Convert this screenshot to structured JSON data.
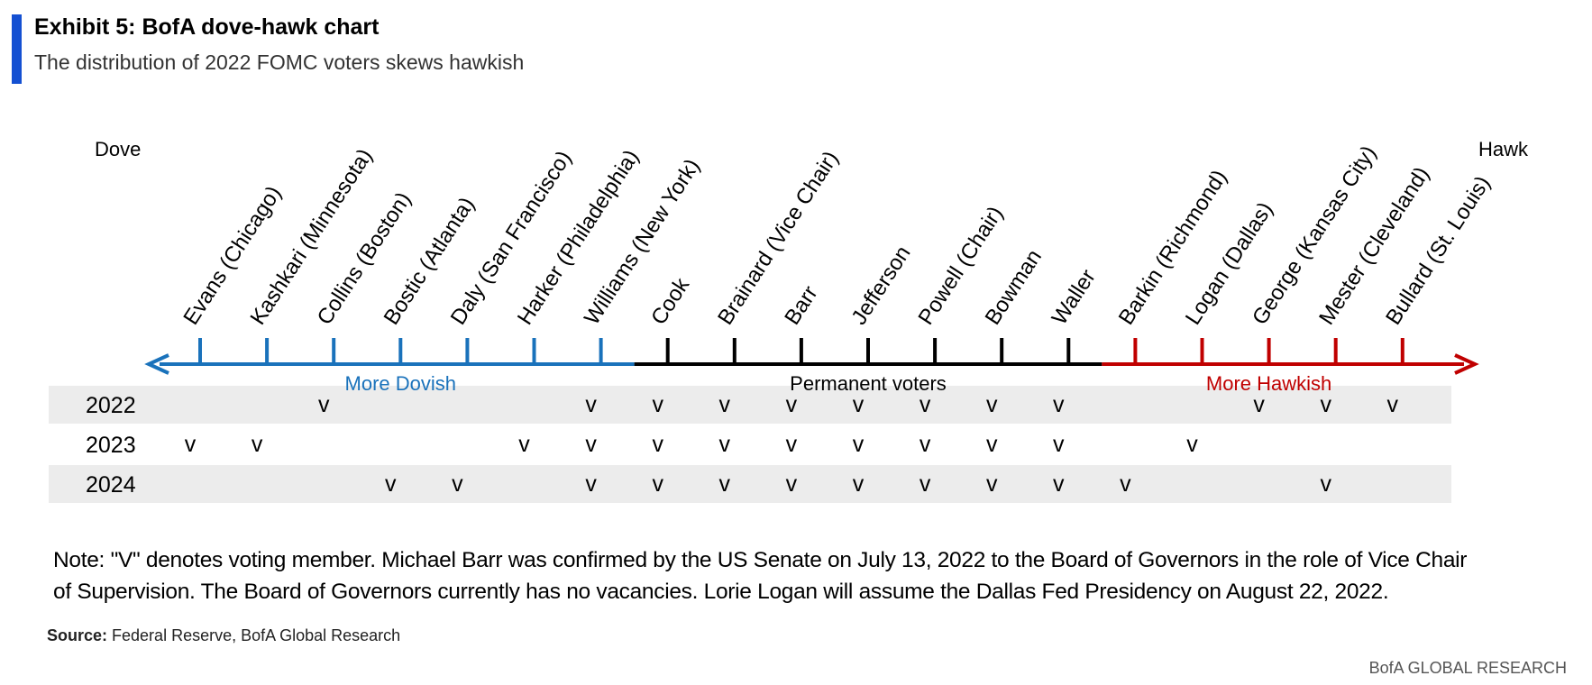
{
  "header": {
    "title": "Exhibit 5: BofA dove-hawk chart",
    "subtitle": "The distribution of 2022 FOMC voters skews hawkish"
  },
  "chart_data": {
    "type": "table",
    "scale": {
      "left_label": "Dove",
      "right_label": "Hawk"
    },
    "groups": [
      {
        "label": "More Dovish",
        "from": 0,
        "to": 6,
        "color": "#1a72bb"
      },
      {
        "label": "Permanent voters",
        "from": 7,
        "to": 13,
        "color": "#000000"
      },
      {
        "label": "More Hawkish",
        "from": 14,
        "to": 18,
        "color": "#c00000"
      }
    ],
    "members": [
      "Evans (Chicago)",
      "Kashkari (Minnesota)",
      "Collins (Boston)",
      "Bostic (Atlanta)",
      "Daly (San Francisco)",
      "Harker (Philadelphia)",
      "Williams (New York)",
      "Cook",
      "Brainard (Vice Chair)",
      "Barr",
      "Jefferson",
      "Powell (Chair)",
      "Bowman",
      "Waller",
      "Barkin (Richmond)",
      "Logan (Dallas)",
      "George (Kansas City)",
      "Mester (Cleveland)",
      "Bullard (St. Louis)"
    ],
    "vote_mark": "v",
    "years": [
      {
        "year": "2022",
        "voters": [
          2,
          6,
          7,
          8,
          9,
          10,
          11,
          12,
          13,
          16,
          17,
          18
        ]
      },
      {
        "year": "2023",
        "voters": [
          0,
          1,
          5,
          6,
          7,
          8,
          9,
          10,
          11,
          12,
          13,
          15
        ]
      },
      {
        "year": "2024",
        "voters": [
          3,
          4,
          6,
          7,
          8,
          9,
          10,
          11,
          12,
          13,
          14,
          17
        ]
      }
    ]
  },
  "note": {
    "line1": "Note: \"V\" denotes voting member. Michael Barr was confirmed by the US Senate on July 13, 2022 to the Board of Governors in the role of Vice Chair",
    "line2": "of Supervision. The Board of Governors currently has no vacancies. Lorie Logan will assume the Dallas Fed Presidency on August 22, 2022."
  },
  "source": {
    "label": "Source:",
    "text": " Federal Reserve, BofA Global Research"
  },
  "footer": {
    "brand": "BofA GLOBAL RESEARCH"
  },
  "colors": {
    "accent": "#1450d2",
    "dove": "#1a72bb",
    "neutral": "#000000",
    "hawk": "#c00000",
    "band": "#ececec"
  }
}
